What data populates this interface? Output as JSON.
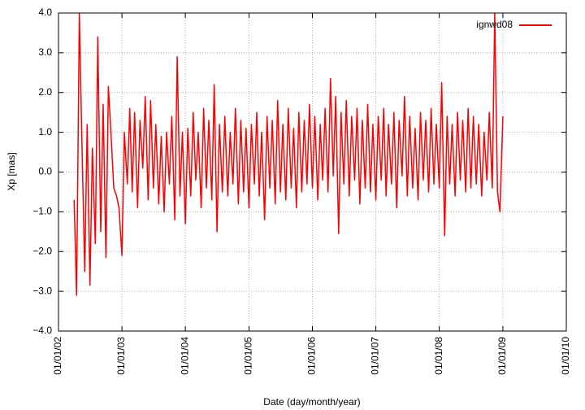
{
  "chart_data": {
    "type": "line",
    "xlabel": "Date (day/month/year)",
    "ylabel": "Xp [mas]",
    "x": [
      "2002-04-01",
      "2002-04-15",
      "2002-05-01",
      "2002-05-15",
      "2002-06-01",
      "2002-06-15",
      "2002-07-01",
      "2002-07-15",
      "2002-08-01",
      "2002-08-15",
      "2002-09-01",
      "2002-09-15",
      "2002-10-01",
      "2002-10-15",
      "2002-11-01",
      "2002-11-15",
      "2002-12-01",
      "2002-12-15",
      "2003-01-01",
      "2003-01-15",
      "2003-02-01",
      "2003-02-15",
      "2003-03-01",
      "2003-03-15",
      "2003-04-01",
      "2003-04-15",
      "2003-05-01",
      "2003-05-15",
      "2003-06-01",
      "2003-06-15",
      "2003-07-01",
      "2003-07-15",
      "2003-08-01",
      "2003-08-15",
      "2003-09-01",
      "2003-09-15",
      "2003-10-01",
      "2003-10-15",
      "2003-11-01",
      "2003-11-15",
      "2003-12-01",
      "2003-12-15",
      "2004-01-01",
      "2004-01-15",
      "2004-02-01",
      "2004-02-15",
      "2004-03-01",
      "2004-03-15",
      "2004-04-01",
      "2004-04-15",
      "2004-05-01",
      "2004-05-15",
      "2004-06-01",
      "2004-06-15",
      "2004-07-01",
      "2004-07-15",
      "2004-08-01",
      "2004-08-15",
      "2004-09-01",
      "2004-09-15",
      "2004-10-01",
      "2004-10-15",
      "2004-11-01",
      "2004-11-15",
      "2004-12-01",
      "2004-12-15",
      "2005-01-01",
      "2005-01-15",
      "2005-02-01",
      "2005-02-15",
      "2005-03-01",
      "2005-03-15",
      "2005-04-01",
      "2005-04-15",
      "2005-05-01",
      "2005-05-15",
      "2005-06-01",
      "2005-06-15",
      "2005-07-01",
      "2005-07-15",
      "2005-08-01",
      "2005-08-15",
      "2005-09-01",
      "2005-09-15",
      "2005-10-01",
      "2005-10-15",
      "2005-11-01",
      "2005-11-15",
      "2005-12-01",
      "2005-12-15",
      "2006-01-01",
      "2006-01-15",
      "2006-02-01",
      "2006-02-15",
      "2006-03-01",
      "2006-03-15",
      "2006-04-01",
      "2006-04-15",
      "2006-05-01",
      "2006-05-15",
      "2006-06-01",
      "2006-06-15",
      "2006-07-01",
      "2006-07-15",
      "2006-08-01",
      "2006-08-15",
      "2006-09-01",
      "2006-09-15",
      "2006-10-01",
      "2006-10-15",
      "2006-11-01",
      "2006-11-15",
      "2006-12-01",
      "2006-12-15",
      "2007-01-01",
      "2007-01-15",
      "2007-02-01",
      "2007-02-15",
      "2007-03-01",
      "2007-03-15",
      "2007-04-01",
      "2007-04-15",
      "2007-05-01",
      "2007-05-15",
      "2007-06-01",
      "2007-06-15",
      "2007-07-01",
      "2007-07-15",
      "2007-08-01",
      "2007-08-15",
      "2007-09-01",
      "2007-09-15",
      "2007-10-01",
      "2007-10-15",
      "2007-11-01",
      "2007-11-15",
      "2007-12-01",
      "2007-12-15",
      "2008-01-01",
      "2008-01-15",
      "2008-02-01",
      "2008-02-15",
      "2008-03-01",
      "2008-03-15",
      "2008-04-01",
      "2008-04-15",
      "2008-05-01",
      "2008-05-15",
      "2008-06-01",
      "2008-06-15",
      "2008-07-01",
      "2008-07-15",
      "2008-08-01",
      "2008-08-15",
      "2008-09-01",
      "2008-09-15",
      "2008-10-01",
      "2008-10-15",
      "2008-11-01",
      "2008-11-15",
      "2008-12-01",
      "2008-12-15",
      "2009-01-01"
    ],
    "series": [
      {
        "name": "ignwd08",
        "color": "#ff0000",
        "values": [
          -0.7,
          -3.1,
          4.0,
          0.9,
          -2.5,
          1.2,
          -2.85,
          0.6,
          -1.8,
          3.4,
          -1.5,
          1.7,
          -2.15,
          2.15,
          0.8,
          -0.4,
          -0.6,
          -0.9,
          -2.1,
          1.0,
          -0.3,
          1.6,
          -0.5,
          1.5,
          -0.9,
          1.3,
          0.1,
          1.9,
          -0.7,
          1.8,
          -0.4,
          1.2,
          -0.8,
          0.9,
          -1.0,
          1.0,
          -0.3,
          1.4,
          -1.2,
          2.9,
          -0.6,
          1.0,
          -1.3,
          1.1,
          -0.6,
          1.5,
          -0.2,
          1.0,
          -0.9,
          1.6,
          -0.4,
          1.3,
          -0.7,
          2.2,
          -1.5,
          1.2,
          -0.5,
          1.4,
          -0.6,
          1.0,
          -0.3,
          1.6,
          -0.8,
          1.3,
          -0.5,
          1.1,
          -0.9,
          1.2,
          -0.3,
          1.5,
          -0.6,
          1.0,
          -1.2,
          1.4,
          -0.4,
          1.3,
          -0.8,
          1.8,
          -0.5,
          1.2,
          -0.7,
          1.6,
          -0.4,
          1.1,
          -0.9,
          1.5,
          -0.5,
          1.3,
          -0.3,
          1.7,
          -0.4,
          1.4,
          -0.7,
          1.2,
          -0.2,
          1.6,
          -0.5,
          2.35,
          -0.1,
          1.9,
          -1.55,
          1.5,
          -0.3,
          1.8,
          -0.6,
          1.4,
          -0.2,
          1.6,
          -0.8,
          1.3,
          -0.4,
          1.7,
          -0.5,
          1.2,
          -0.7,
          1.4,
          -0.2,
          1.6,
          -0.6,
          1.2,
          -0.3,
          1.5,
          -0.9,
          1.3,
          -0.1,
          1.9,
          -0.6,
          1.4,
          -0.4,
          1.1,
          -0.7,
          1.5,
          -0.2,
          1.3,
          -0.5,
          1.6,
          -0.3,
          1.2,
          -0.4,
          2.25,
          -1.6,
          1.4,
          -0.3,
          1.2,
          -0.6,
          1.5,
          -0.2,
          1.3,
          -0.5,
          1.6,
          -0.4,
          1.4,
          -0.3,
          1.2,
          -0.6,
          1.0,
          -0.2,
          1.5,
          -0.4,
          4.0,
          -0.5,
          -1.0,
          1.4
        ]
      }
    ],
    "xlim": [
      "2002-01-01",
      "2010-01-01"
    ],
    "xticks": [
      {
        "value": "2002-01-01",
        "label": "01/01/02"
      },
      {
        "value": "2003-01-01",
        "label": "01/01/03"
      },
      {
        "value": "2004-01-01",
        "label": "01/01/04"
      },
      {
        "value": "2005-01-01",
        "label": "01/01/05"
      },
      {
        "value": "2006-01-01",
        "label": "01/01/06"
      },
      {
        "value": "2007-01-01",
        "label": "01/01/07"
      },
      {
        "value": "2008-01-01",
        "label": "01/01/08"
      },
      {
        "value": "2009-01-01",
        "label": "01/01/09"
      },
      {
        "value": "2010-01-01",
        "label": "01/01/10"
      }
    ],
    "ylim": [
      -4,
      4
    ],
    "yticks": [
      {
        "value": -4,
        "label": "−4.0"
      },
      {
        "value": -3,
        "label": "−3.0"
      },
      {
        "value": -2,
        "label": "−2.0"
      },
      {
        "value": -1,
        "label": "−1.0"
      },
      {
        "value": 0,
        "label": "0.0"
      },
      {
        "value": 1,
        "label": "1.0"
      },
      {
        "value": 2,
        "label": "2.0"
      },
      {
        "value": 3,
        "label": "3.0"
      },
      {
        "value": 4,
        "label": "4.0"
      }
    ],
    "grid": true,
    "legend": "top-right"
  }
}
